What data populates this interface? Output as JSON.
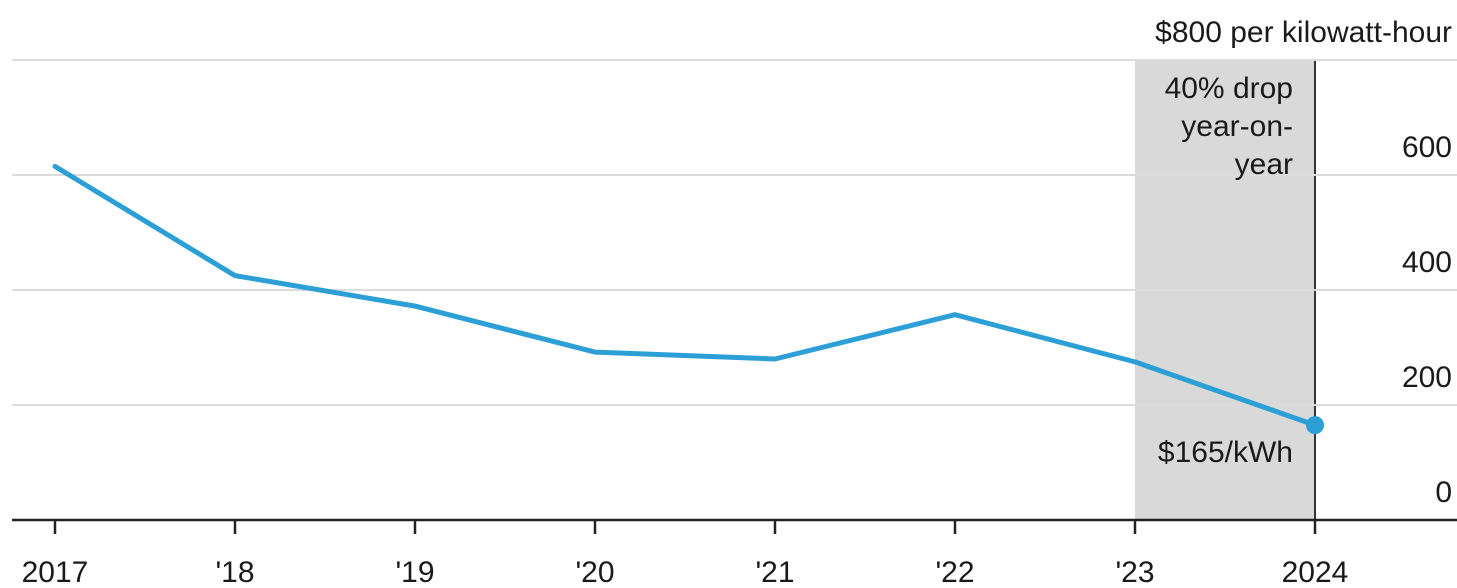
{
  "chart_data": {
    "type": "line",
    "title": "",
    "xlabel": "",
    "ylabel": "",
    "unit_label": "$800 per kilowatt-hour",
    "categories": [
      "2017",
      "'18",
      "'19",
      "'20",
      "'21",
      "'22",
      "'23",
      "2024"
    ],
    "series": [
      {
        "values": [
          615,
          425,
          372,
          292,
          280,
          357,
          275,
          165
        ]
      }
    ],
    "ylim": [
      0,
      800
    ],
    "y_ticks": [
      {
        "value": 600,
        "label": "600"
      },
      {
        "value": 400,
        "label": "400"
      },
      {
        "value": 200,
        "label": "200"
      },
      {
        "value": 0,
        "label": "0"
      }
    ],
    "grid": true,
    "line_color": "#2b9fd6",
    "grid_color": "#dcdcdc",
    "highlight_color": "#d9d9d9",
    "highlight_range": [
      "'23",
      "2024"
    ],
    "highlight_annotation": [
      "40% drop",
      "year-on-",
      "year"
    ],
    "endpoint_label": "$165/kWh"
  }
}
